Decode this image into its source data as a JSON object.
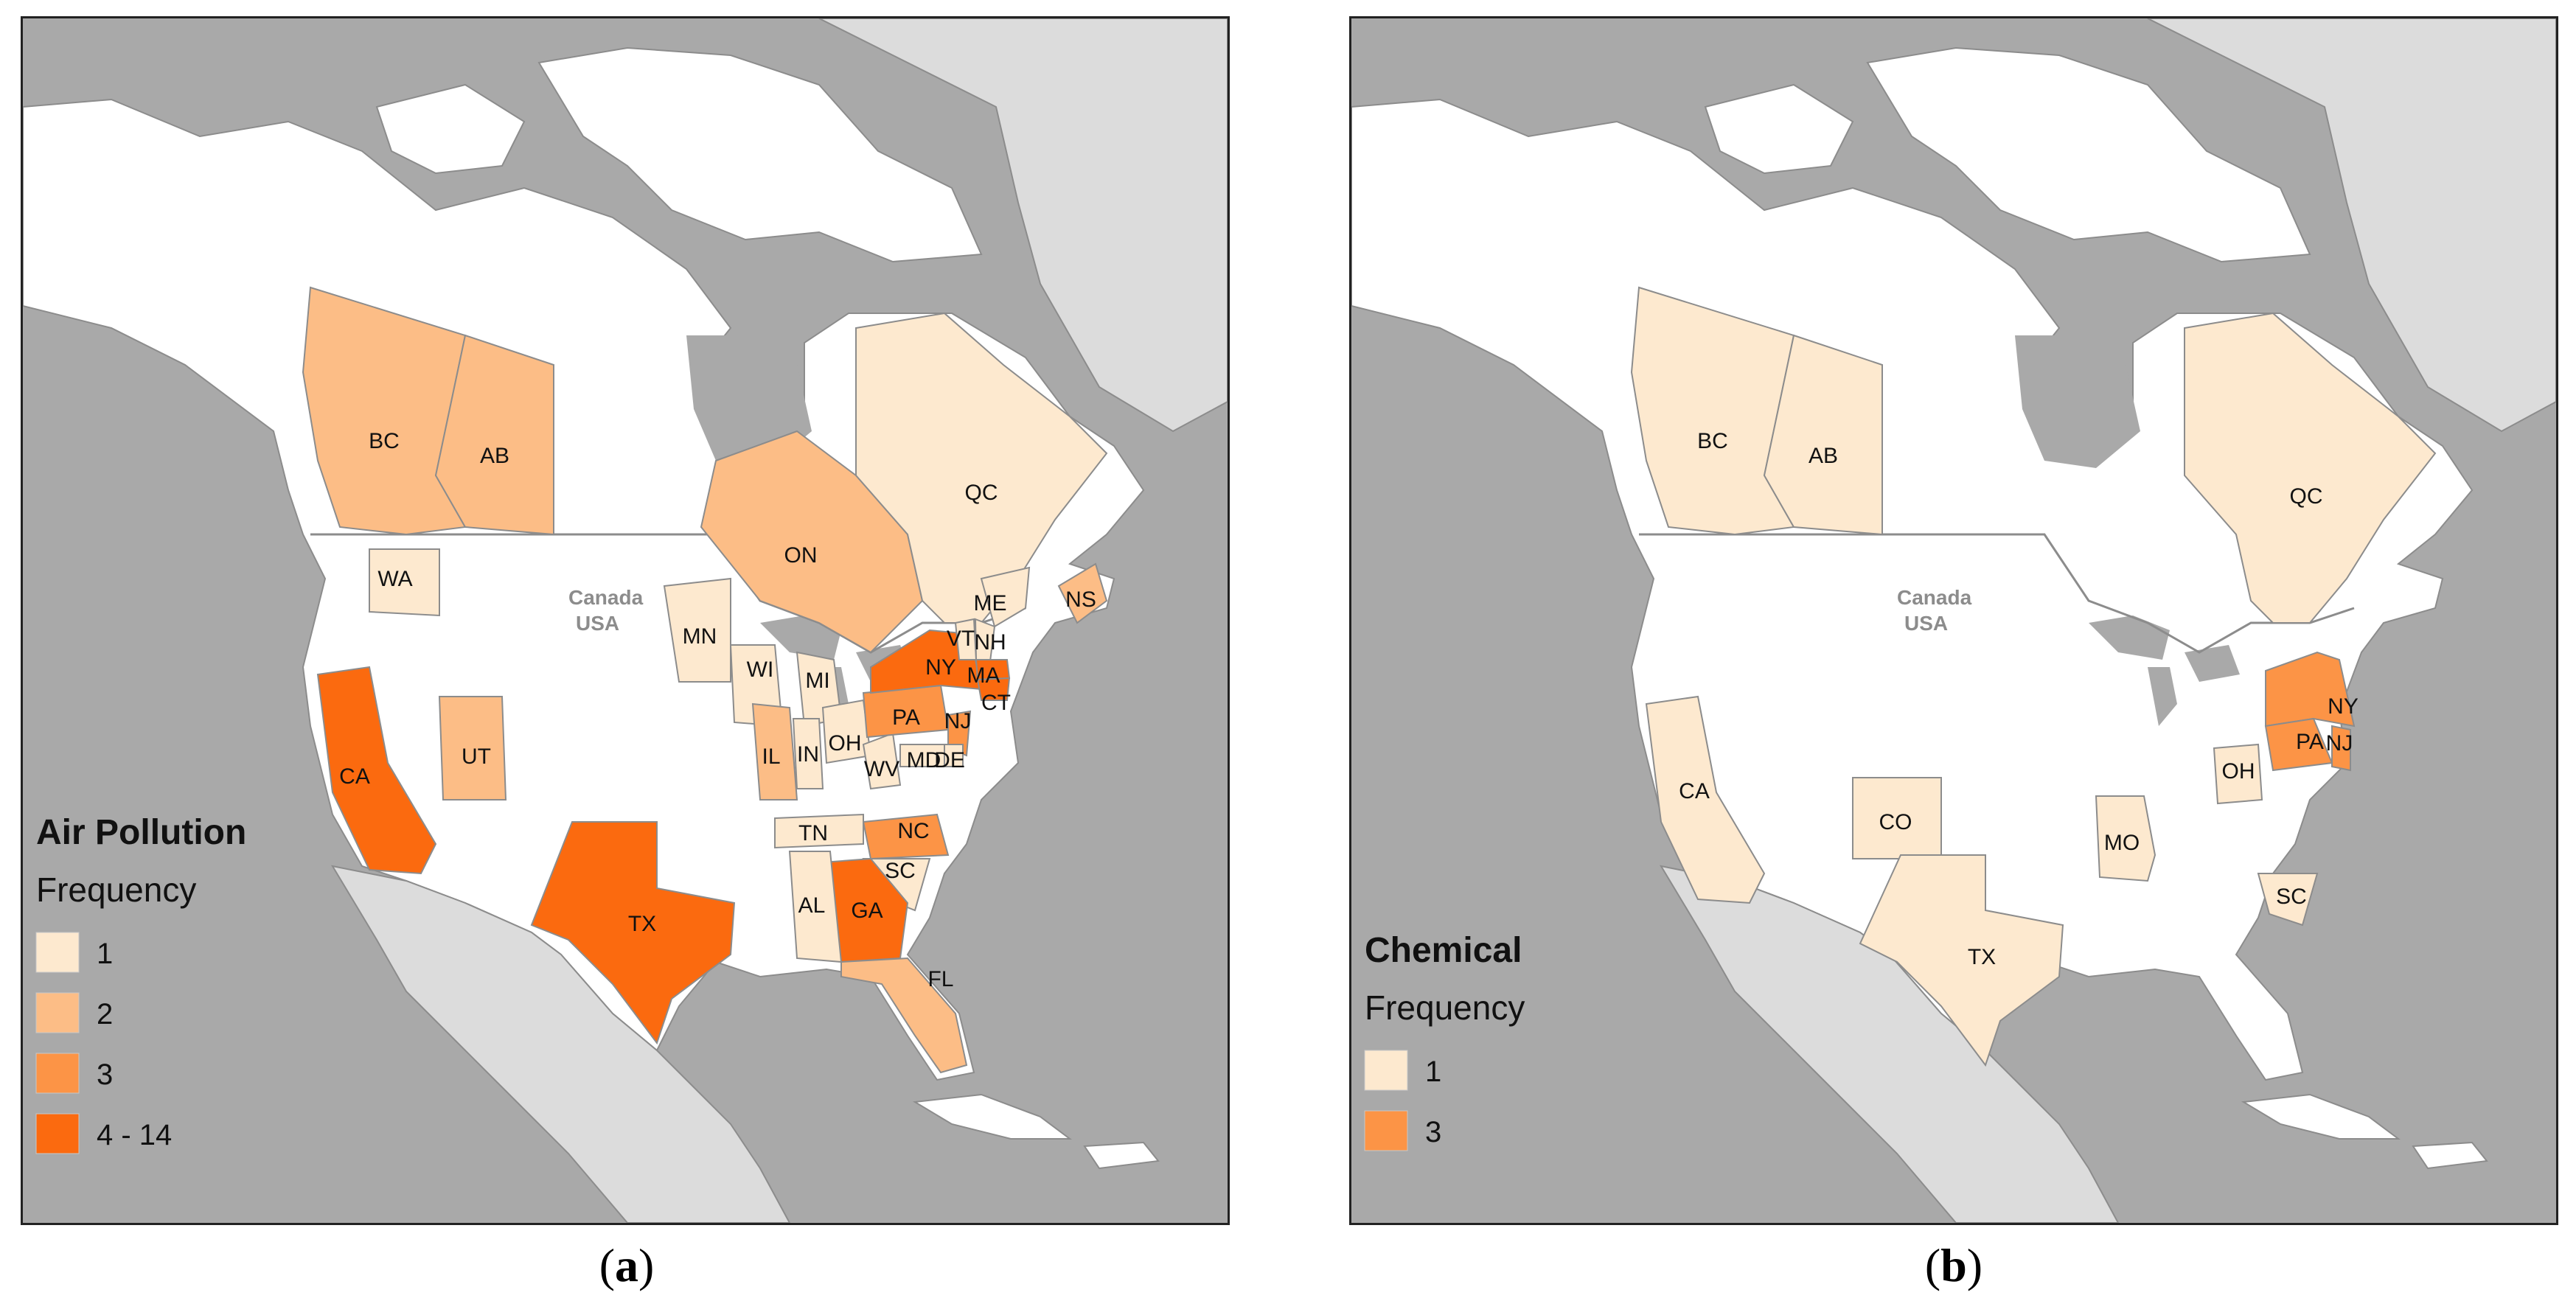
{
  "panels": [
    {
      "id": "a",
      "caption_letter": "a",
      "legend_title": "Air Pollution",
      "legend_subtitle": "Frequency",
      "legend": [
        {
          "label": "1",
          "color": "#fde9cf"
        },
        {
          "label": "2",
          "color": "#fcbd86"
        },
        {
          "label": "3",
          "color": "#fc9446"
        },
        {
          "label": "4 - 14",
          "color": "#fb6a0f"
        }
      ],
      "regions": [
        {
          "code": "BC",
          "class": 2
        },
        {
          "code": "AB",
          "class": 2
        },
        {
          "code": "ON",
          "class": 2
        },
        {
          "code": "QC",
          "class": 1
        },
        {
          "code": "NS",
          "class": 2
        },
        {
          "code": "WA",
          "class": 1
        },
        {
          "code": "CA",
          "class": 4
        },
        {
          "code": "UT",
          "class": 2
        },
        {
          "code": "TX",
          "class": 4
        },
        {
          "code": "MN",
          "class": 1
        },
        {
          "code": "WI",
          "class": 1
        },
        {
          "code": "MI",
          "class": 1
        },
        {
          "code": "IL",
          "class": 2
        },
        {
          "code": "IN",
          "class": 1
        },
        {
          "code": "OH",
          "class": 1
        },
        {
          "code": "WV",
          "class": 1
        },
        {
          "code": "PA",
          "class": 3
        },
        {
          "code": "NY",
          "class": 4
        },
        {
          "code": "VT",
          "class": 1
        },
        {
          "code": "NH",
          "class": 1
        },
        {
          "code": "ME",
          "class": 1
        },
        {
          "code": "MA",
          "class": 4
        },
        {
          "code": "CT",
          "class": 4
        },
        {
          "code": "NJ",
          "class": 3
        },
        {
          "code": "MD",
          "class": 1
        },
        {
          "code": "DE",
          "class": 1
        },
        {
          "code": "NC",
          "class": 3
        },
        {
          "code": "SC",
          "class": 1
        },
        {
          "code": "GA",
          "class": 4
        },
        {
          "code": "TN",
          "class": 1
        },
        {
          "code": "AL",
          "class": 1
        },
        {
          "code": "FL",
          "class": 2
        }
      ]
    },
    {
      "id": "b",
      "caption_letter": "b",
      "legend_title": "Chemical",
      "legend_subtitle": "Frequency",
      "legend": [
        {
          "label": "1",
          "color": "#fde9cf"
        },
        {
          "label": "3",
          "color": "#fc9446"
        }
      ],
      "regions": [
        {
          "code": "BC",
          "class": 1
        },
        {
          "code": "AB",
          "class": 1
        },
        {
          "code": "QC",
          "class": 1
        },
        {
          "code": "CA",
          "class": 1
        },
        {
          "code": "CO",
          "class": 1
        },
        {
          "code": "MO",
          "class": 1
        },
        {
          "code": "TX",
          "class": 1
        },
        {
          "code": "OH",
          "class": 1
        },
        {
          "code": "SC",
          "class": 1
        },
        {
          "code": "NY",
          "class": 2
        },
        {
          "code": "PA",
          "class": 2
        },
        {
          "code": "NJ",
          "class": 2
        }
      ]
    }
  ],
  "border_label_top": "Canada",
  "border_label_bottom": "USA",
  "colors": {
    "ocean": "#a9a9a9",
    "land_white": "#ffffff",
    "mexico": "#dcdcdc",
    "greenland": "#dcdcdc",
    "border": "#8c8c8c"
  }
}
